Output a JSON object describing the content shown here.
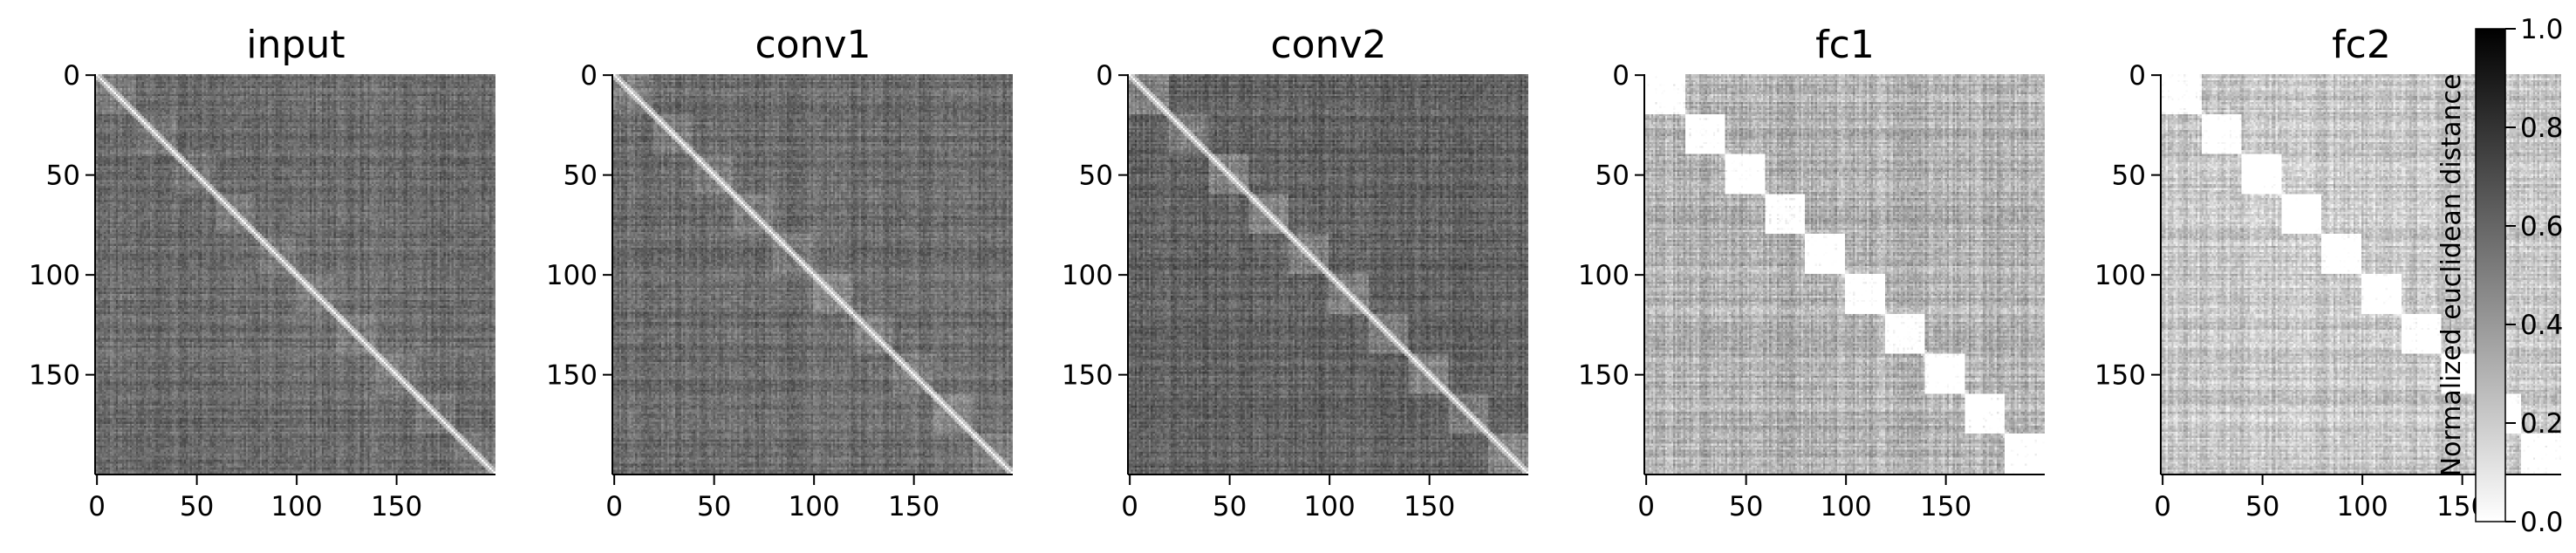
{
  "chart_data": {
    "type": "heatmap",
    "matrix_size": 200,
    "block_sizes": [
      20,
      20,
      20,
      20,
      20,
      20,
      20,
      20,
      20,
      20
    ],
    "cmap": [
      "#ffffff",
      "#000000"
    ],
    "xticks": [
      0,
      50,
      100,
      150
    ],
    "yticks": [
      0,
      50,
      100,
      150
    ],
    "xlim": [
      0,
      200
    ],
    "ylim": [
      200,
      0
    ],
    "panels": [
      {
        "title": "input",
        "base": 0.58,
        "spread": 0.3,
        "within_block_reduction": 0.04,
        "band_strength": 0.35
      },
      {
        "title": "conv1",
        "base": 0.58,
        "spread": 0.3,
        "within_block_reduction": 0.05,
        "band_strength": 0.35
      },
      {
        "title": "conv2",
        "base": 0.62,
        "spread": 0.3,
        "within_block_reduction": 0.08,
        "band_strength": 0.35
      },
      {
        "title": "fc1",
        "base": 0.3,
        "spread": 0.34,
        "within_block_reduction": 0.25,
        "band_strength": 0.45
      },
      {
        "title": "fc2",
        "base": 0.22,
        "spread": 0.32,
        "within_block_reduction": 0.2,
        "band_strength": 0.45
      }
    ],
    "colorbar": {
      "label": "Normalized euclidean distance",
      "range": [
        0.0,
        1.0
      ],
      "ticks": [
        0.0,
        0.2,
        0.4,
        0.6,
        0.8,
        1.0
      ],
      "tick_labels": [
        "0.0",
        "0.2",
        "0.4",
        "0.6",
        "0.8",
        "1.0"
      ]
    }
  }
}
